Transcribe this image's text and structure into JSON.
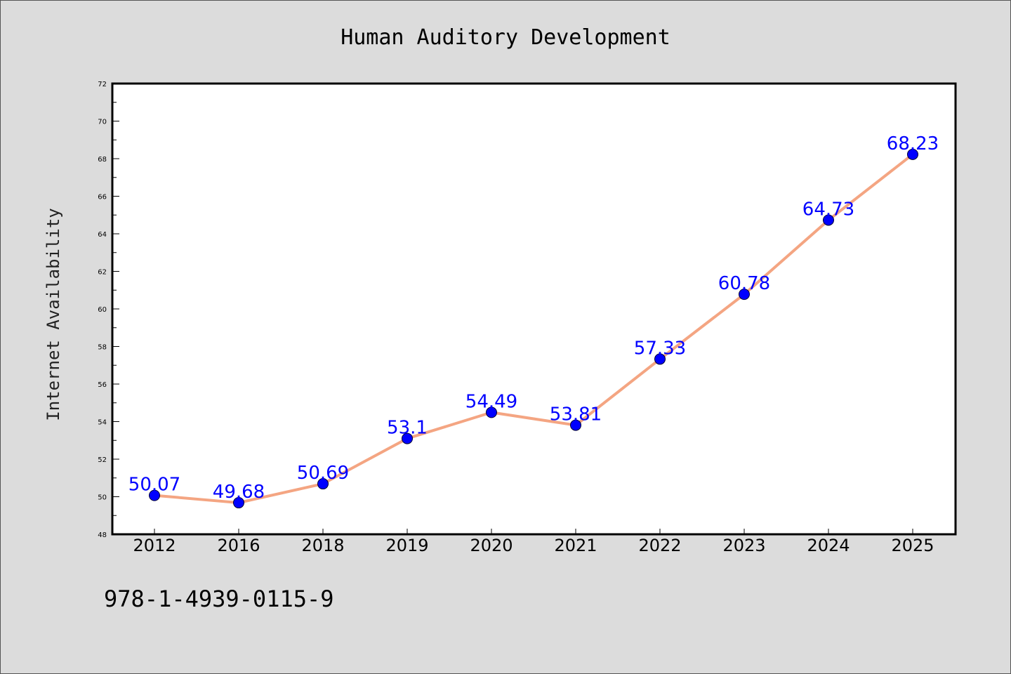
{
  "chart_data": {
    "type": "line",
    "title": "Human Auditory Development",
    "xlabel": "",
    "ylabel": "Internet Availability",
    "categories": [
      "2012",
      "2016",
      "2018",
      "2019",
      "2020",
      "2021",
      "2022",
      "2023",
      "2024",
      "2025"
    ],
    "series": [
      {
        "values": [
          50.07,
          49.68,
          50.69,
          53.1,
          54.49,
          53.81,
          57.33,
          60.78,
          64.73,
          68.23
        ],
        "data_labels": [
          "50.07",
          "49.68",
          "50.69",
          "53.1",
          "54.49",
          "53.81",
          "57.33",
          "60.78",
          "64.73",
          "68.23"
        ],
        "line_color": "#f4a582",
        "marker_color": "#0000ff",
        "label_color": "#0000ff"
      }
    ],
    "ylim": [
      48,
      72
    ],
    "yticks": [
      "48",
      "50",
      "52",
      "54",
      "56",
      "58",
      "60",
      "62",
      "64",
      "66",
      "68",
      "70",
      "72"
    ],
    "grid": false,
    "legend": "none"
  },
  "footer": {
    "isbn": "978-1-4939-0115-9"
  },
  "colors": {
    "background": "#dcdcdc",
    "plot_background": "#ffffff"
  }
}
